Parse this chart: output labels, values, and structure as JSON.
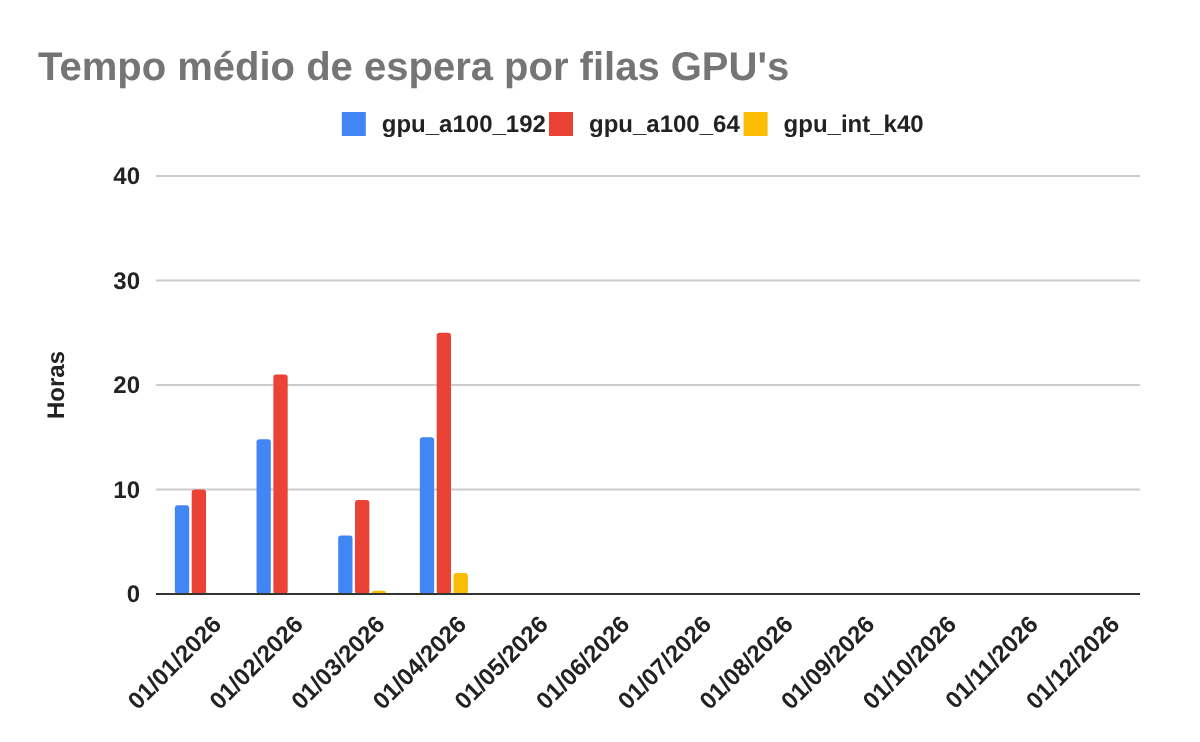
{
  "chart_data": {
    "type": "bar",
    "title": "Tempo médio de espera por filas GPU's",
    "ylabel": "Horas",
    "categories": [
      "01/01/2026",
      "01/02/2026",
      "01/03/2026",
      "01/04/2026",
      "01/05/2026",
      "01/06/2026",
      "01/07/2026",
      "01/08/2026",
      "01/09/2026",
      "01/10/2026",
      "01/11/2026",
      "01/12/2026"
    ],
    "series": [
      {
        "name": "gpu_a100_192",
        "color": "#4285f4",
        "values": [
          8.5,
          14.8,
          5.6,
          15,
          null,
          null,
          null,
          null,
          null,
          null,
          null,
          null
        ]
      },
      {
        "name": "gpu_a100_64",
        "color": "#ea4335",
        "values": [
          10,
          21,
          9,
          25,
          null,
          null,
          null,
          null,
          null,
          null,
          null,
          null
        ]
      },
      {
        "name": "gpu_int_k40",
        "color": "#fbbc04",
        "values": [
          null,
          null,
          0.3,
          2,
          null,
          null,
          null,
          null,
          null,
          null,
          null,
          null
        ]
      }
    ],
    "ylim": [
      0,
      40
    ],
    "yticks": [
      0,
      10,
      20,
      30,
      40
    ],
    "grid": "y",
    "legend": "top"
  }
}
